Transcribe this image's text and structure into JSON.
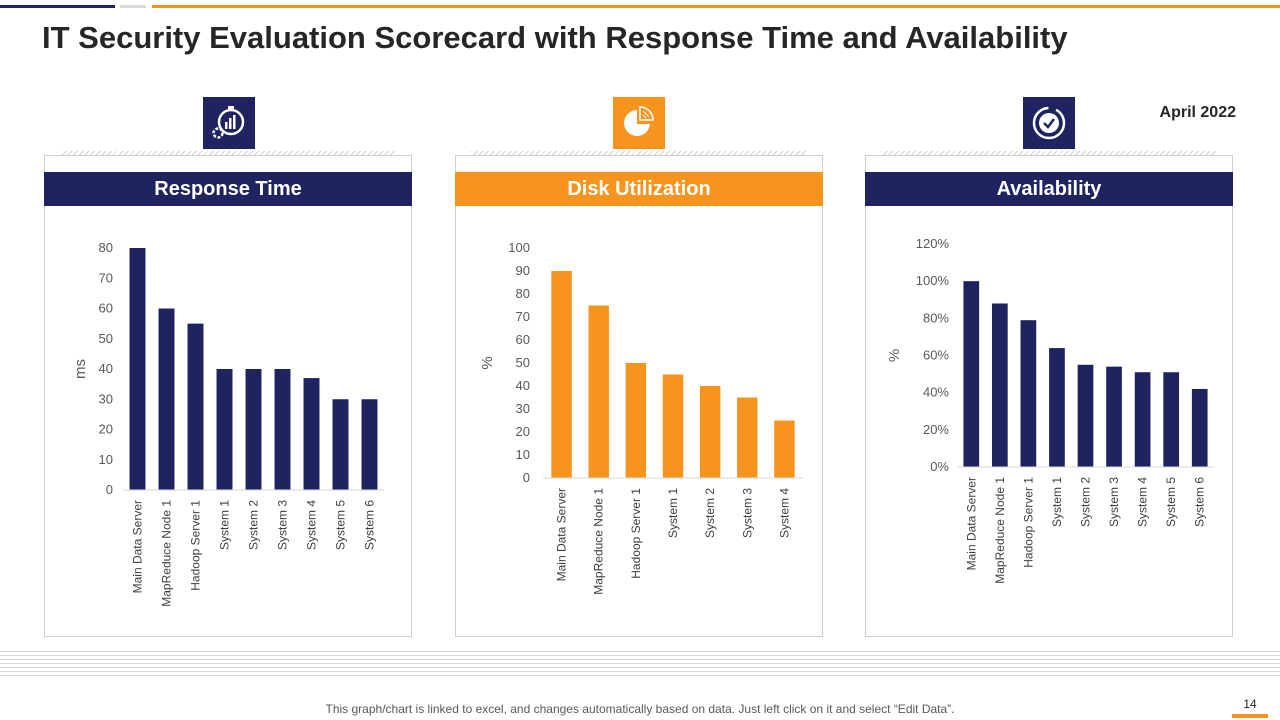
{
  "title": "IT Security Evaluation Scorecard with Response Time and Availability",
  "date": "April 2022",
  "footnote": "This graph/chart is linked to excel, and changes automatically based on data. Just left click on it and select “Edit Data”.",
  "page_number": "14",
  "colors": {
    "navy": "#1f2460",
    "orange": "#f7941d",
    "grey": "#d9d9d9"
  },
  "icons": [
    "stopwatch-gear-icon",
    "pie-chart-icon",
    "check-circle-icon"
  ],
  "chart_data": [
    {
      "type": "bar",
      "title": "Response Time",
      "color": "#1f2460",
      "categories": [
        "Main Data Server",
        "MapReduce Node 1",
        "Hadoop Server 1",
        "System 1",
        "System 2",
        "System 3",
        "System 4",
        "System 5",
        "System 6"
      ],
      "values": [
        80,
        60,
        55,
        40,
        40,
        40,
        37,
        30,
        30
      ],
      "ylabel": "ms",
      "ylim": [
        0,
        80
      ],
      "yticks": [
        "0",
        "10",
        "20",
        "30",
        "40",
        "50",
        "60",
        "70",
        "80"
      ],
      "grid": false
    },
    {
      "type": "bar",
      "title": "Disk Utilization",
      "color": "#f7941d",
      "categories": [
        "Main Data Server",
        "MapReduce Node 1",
        "Hadoop Server 1",
        "System 1",
        "System 2",
        "System 3",
        "System 4"
      ],
      "values": [
        90,
        75,
        50,
        45,
        40,
        35,
        25
      ],
      "ylabel": "%",
      "ylim": [
        0,
        100
      ],
      "yticks": [
        "0",
        "10",
        "20",
        "30",
        "40",
        "50",
        "60",
        "70",
        "80",
        "90",
        "100"
      ],
      "grid": false
    },
    {
      "type": "bar",
      "title": "Availability",
      "color": "#1f2460",
      "categories": [
        "Main Data Server",
        "MapReduce Node 1",
        "Hadoop Server 1",
        "System 1",
        "System 2",
        "System 3",
        "System 4",
        "System 5",
        "System 6"
      ],
      "values": [
        100,
        88,
        79,
        64,
        55,
        54,
        51,
        51,
        42
      ],
      "ylabel": "%",
      "ylim": [
        0,
        120
      ],
      "yticks": [
        "0%",
        "20%",
        "40%",
        "60%",
        "80%",
        "100%",
        "120%"
      ],
      "grid": false
    }
  ]
}
